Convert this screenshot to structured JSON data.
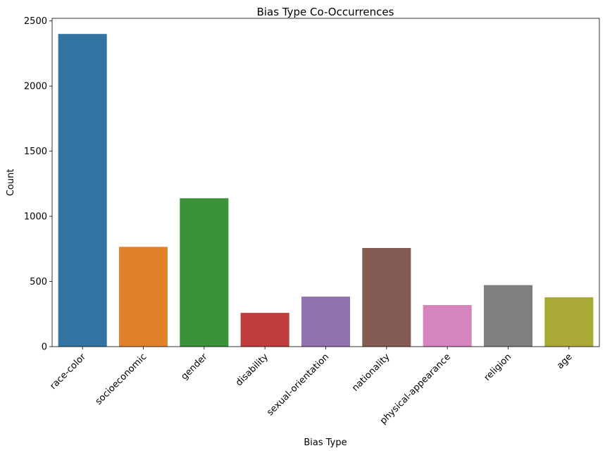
{
  "chart_data": {
    "type": "bar",
    "title": "Bias Type Co-Occurrences",
    "xlabel": "Bias Type",
    "ylabel": "Count",
    "categories": [
      "race-color",
      "socioeconomic",
      "gender",
      "disability",
      "sexual-orientation",
      "nationality",
      "physical-appearance",
      "religion",
      "age"
    ],
    "values": [
      2400,
      766,
      1139,
      259,
      384,
      757,
      319,
      472,
      379
    ],
    "colors": [
      "#3274a1",
      "#e1812c",
      "#3a923a",
      "#c03d3e",
      "#9372b2",
      "#845b53",
      "#d684bd",
      "#7f7f7f",
      "#a9aa35"
    ],
    "ylim": [
      0,
      2520
    ],
    "yticks": [
      0,
      500,
      1000,
      1500,
      2000,
      2500
    ],
    "grid": false,
    "legend": "none"
  }
}
